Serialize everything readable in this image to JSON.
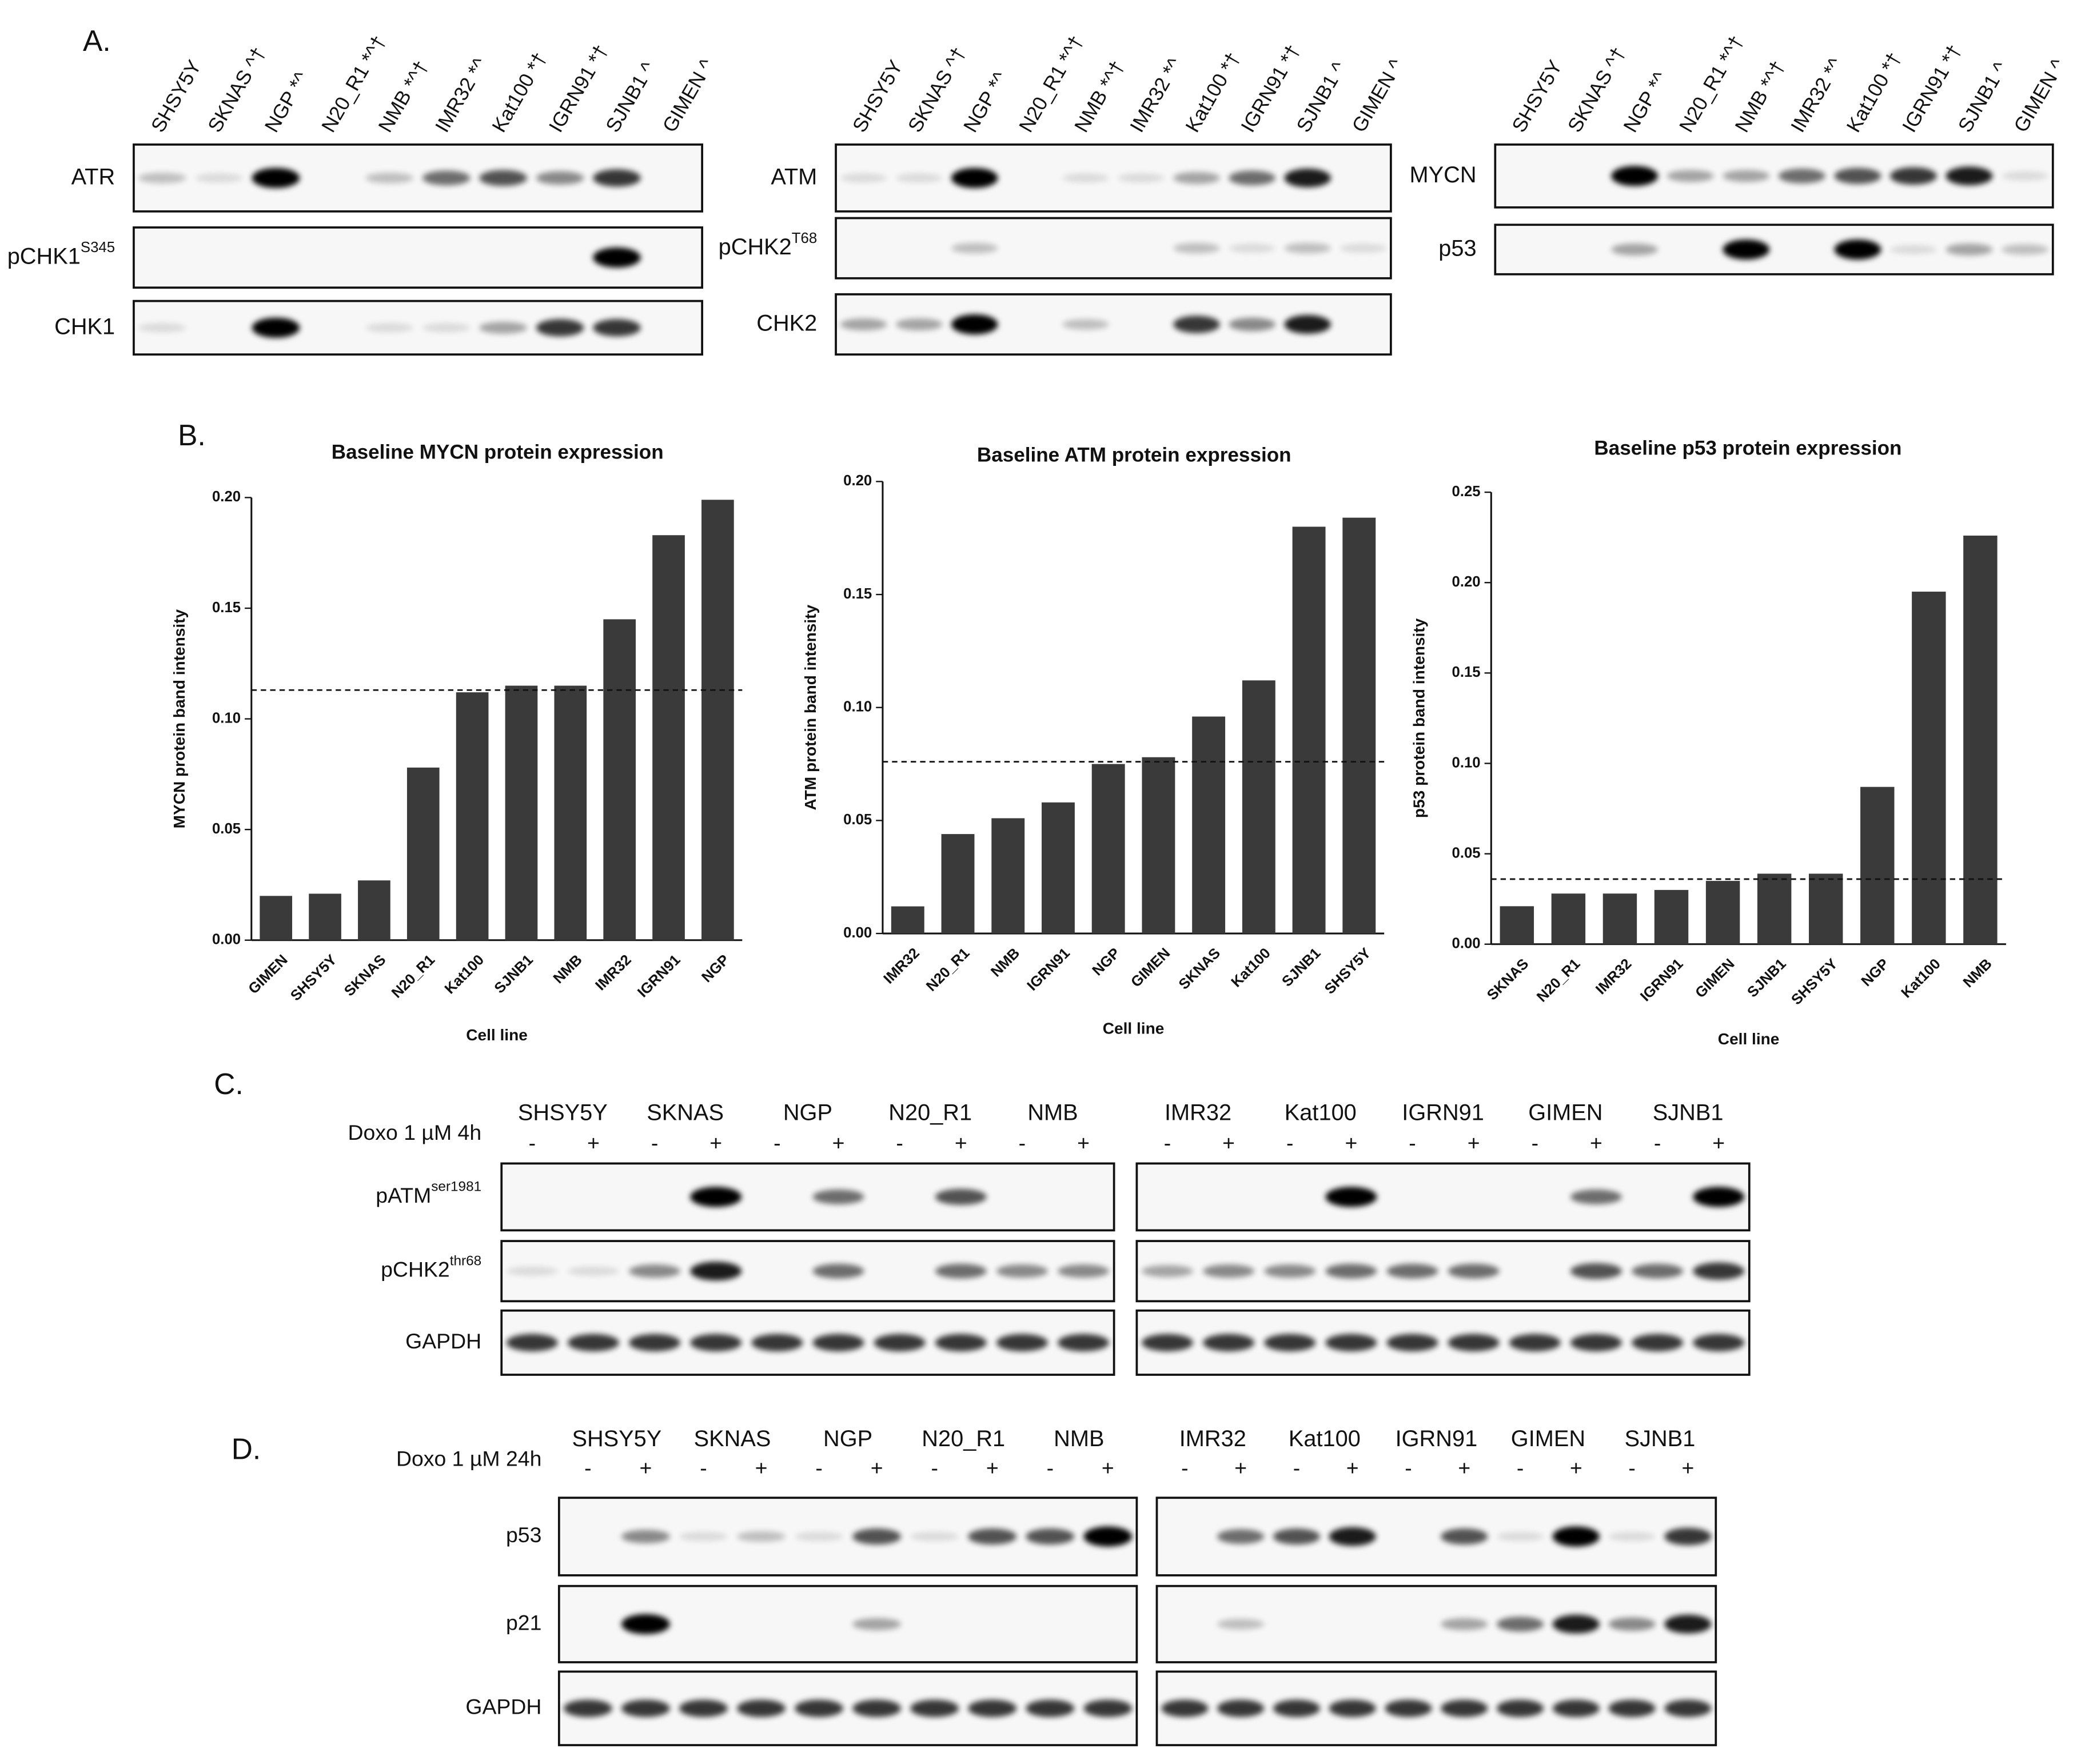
{
  "panel_a": {
    "label": "A.",
    "lanes": [
      "SHSY5Y",
      "SKNAS ^†",
      "NGP *^",
      "N20_R1 *^†",
      "NMB *^†",
      "IMR32 *^",
      "Kat100 *†",
      "IGRN91 *†",
      "SJNB1 ^",
      "GIMEN ^"
    ],
    "groups": [
      {
        "rows": [
          {
            "label": "ATR"
          },
          {
            "label": "pCHK1",
            "sup": "S345"
          },
          {
            "label": "CHK1"
          }
        ]
      },
      {
        "rows": [
          {
            "label": "ATM"
          },
          {
            "label": "pCHK2",
            "sup": "T68"
          },
          {
            "label": "CHK2"
          }
        ]
      },
      {
        "rows": [
          {
            "label": "MYCN"
          },
          {
            "label": "p53"
          }
        ]
      }
    ]
  },
  "panel_b": {
    "label": "B."
  },
  "chart_data": [
    {
      "type": "bar",
      "title": "Baseline MYCN protein expression",
      "y_label": "MYCN protein band intensity",
      "x_label": "Cell line",
      "categories": [
        "GIMEN",
        "SHSY5Y",
        "SKNAS",
        "N20_R1",
        "Kat100",
        "SJNB1",
        "NMB",
        "IMR32",
        "IGRN91",
        "NGP"
      ],
      "values": [
        0.02,
        0.021,
        0.027,
        0.078,
        0.112,
        0.115,
        0.115,
        0.145,
        0.183,
        0.199
      ],
      "color": "#3a3a3a",
      "reference_line": 0.113,
      "ylim": [
        0,
        0.2
      ],
      "yticks": [
        {
          "value": 0,
          "label": "0.00"
        },
        {
          "value": 0.05,
          "label": "0.05"
        },
        {
          "value": 0.1,
          "label": "0.10"
        },
        {
          "value": 0.15,
          "label": "0.15"
        },
        {
          "value": 0.2,
          "label": "0.20"
        }
      ]
    },
    {
      "type": "bar",
      "title": "Baseline ATM protein expression",
      "y_label": "ATM protein band intensity",
      "x_label": "Cell line",
      "categories": [
        "IMR32",
        "N20_R1",
        "NMB",
        "IGRN91",
        "NGP",
        "GIMEN",
        "SKNAS",
        "Kat100",
        "SJNB1",
        "SHSY5Y"
      ],
      "values": [
        0.012,
        0.044,
        0.051,
        0.058,
        0.075,
        0.078,
        0.096,
        0.112,
        0.18,
        0.184
      ],
      "color": "#3a3a3a",
      "reference_line": 0.076,
      "ylim": [
        0,
        0.2
      ],
      "yticks": [
        {
          "value": 0,
          "label": "0.00"
        },
        {
          "value": 0.05,
          "label": "0.05"
        },
        {
          "value": 0.1,
          "label": "0.10"
        },
        {
          "value": 0.15,
          "label": "0.15"
        },
        {
          "value": 0.2,
          "label": "0.20"
        }
      ]
    },
    {
      "type": "bar",
      "title": "Baseline p53 protein expression",
      "y_label": "p53 protein band intensity",
      "x_label": "Cell line",
      "categories": [
        "SKNAS",
        "N20_R1",
        "IMR32",
        "IGRN91",
        "GIMEN",
        "SJNB1",
        "SHSY5Y",
        "NGP",
        "Kat100",
        "NMB"
      ],
      "values": [
        0.021,
        0.028,
        0.028,
        0.03,
        0.035,
        0.039,
        0.039,
        0.087,
        0.195,
        0.226
      ],
      "color": "#3a3a3a",
      "reference_line": 0.036,
      "ylim": [
        0,
        0.25
      ],
      "yticks": [
        {
          "value": 0,
          "label": "0.00"
        },
        {
          "value": 0.05,
          "label": "0.05"
        },
        {
          "value": 0.1,
          "label": "0.10"
        },
        {
          "value": 0.15,
          "label": "0.15"
        },
        {
          "value": 0.2,
          "label": "0.20"
        },
        {
          "value": 0.25,
          "label": "0.25"
        }
      ]
    }
  ],
  "panel_c": {
    "label": "C.",
    "treatment": "Doxo 1 µM 4h",
    "signs": [
      "-",
      "+"
    ],
    "cell_lines": [
      [
        "SHSY5Y",
        "SKNAS",
        "NGP",
        "N20_R1",
        "NMB"
      ],
      [
        "IMR32",
        "Kat100",
        "IGRN91",
        "GIMEN",
        "SJNB1"
      ]
    ],
    "rows": [
      {
        "label": "pATM",
        "sup": "ser1981"
      },
      {
        "label": "pCHK2",
        "sup": "thr68"
      },
      {
        "label": "GAPDH"
      }
    ]
  },
  "panel_d": {
    "label": "D.",
    "treatment": "Doxo 1 µM 24h",
    "signs": [
      "-",
      "+"
    ],
    "cell_lines": [
      [
        "SHSY5Y",
        "SKNAS",
        "NGP",
        "N20_R1",
        "NMB"
      ],
      [
        "IMR32",
        "Kat100",
        "IGRN91",
        "GIMEN",
        "SJNB1"
      ]
    ],
    "rows": [
      {
        "label": "p53"
      },
      {
        "label": "p21"
      },
      {
        "label": "GAPDH"
      }
    ]
  }
}
